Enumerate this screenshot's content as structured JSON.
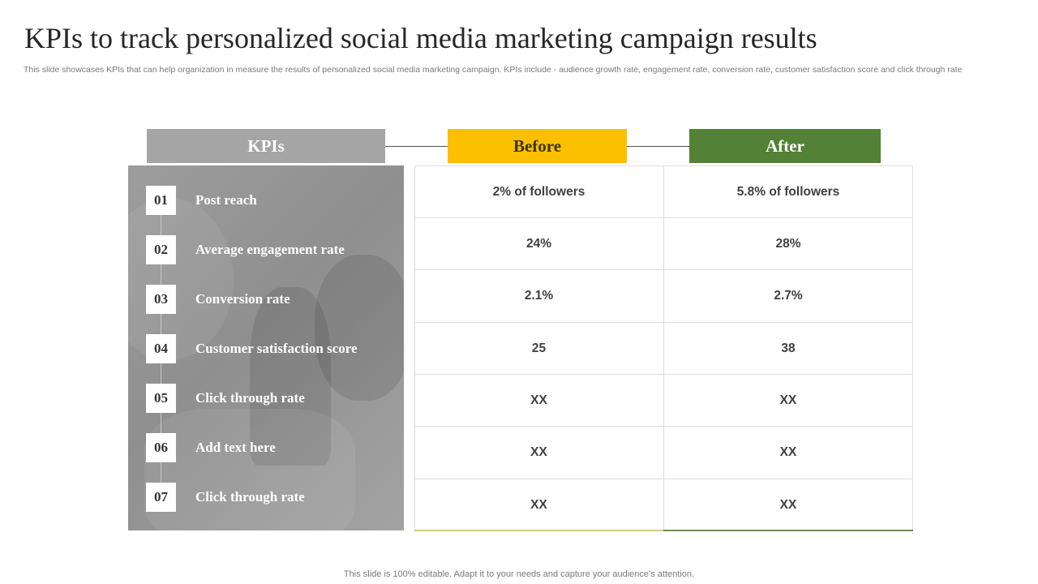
{
  "slide": {
    "title": "KPIs to track personalized social media marketing campaign results",
    "subtitle": "This slide showcases KPIs that can help organization in measure the results of personalized social media marketing campaign. KPIs include - audience growth rate, engagement rate, conversion rate, customer satisfaction score and click through rate",
    "footer": "This slide is 100% editable. Adapt it to your needs and capture your audience’s attention."
  },
  "table": {
    "headers": {
      "kpis": "KPIs",
      "before": "Before",
      "after": "After"
    },
    "rows": [
      {
        "num": "01",
        "kpi": "Post reach",
        "before": "2% of followers",
        "after": "5.8% of followers"
      },
      {
        "num": "02",
        "kpi": "Average engagement rate",
        "before": "24%",
        "after": "28%"
      },
      {
        "num": "03",
        "kpi": "Conversion rate",
        "before": "2.1%",
        "after": "2.7%"
      },
      {
        "num": "04",
        "kpi": "Customer satisfaction score",
        "before": "25",
        "after": "38"
      },
      {
        "num": "05",
        "kpi": "Click through rate",
        "before": "XX",
        "after": "XX"
      },
      {
        "num": "06",
        "kpi": "Add text here",
        "before": "XX",
        "after": "XX"
      },
      {
        "num": "07",
        "kpi": "Click through rate",
        "before": "XX",
        "after": "XX"
      }
    ]
  },
  "colors": {
    "kpis_header": "#a5a5a5",
    "before_header": "#fbc000",
    "after_header": "#538135"
  }
}
